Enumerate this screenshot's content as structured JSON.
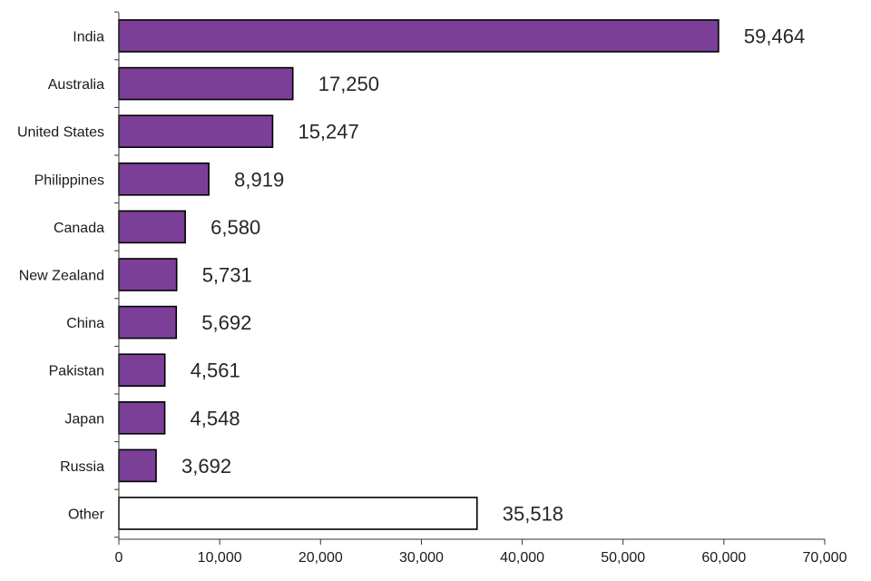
{
  "chart_data": {
    "type": "bar",
    "orientation": "horizontal",
    "title": "",
    "xlabel": "",
    "ylabel": "",
    "categories": [
      "India",
      "Australia",
      "United States",
      "Philippines",
      "Canada",
      "New Zealand",
      "China",
      "Pakistan",
      "Japan",
      "Russia",
      "Other"
    ],
    "values": [
      59464,
      17250,
      15247,
      8919,
      6580,
      5731,
      5692,
      4561,
      4548,
      3692,
      35518
    ],
    "value_labels": [
      "59,464",
      "17,250",
      "15,247",
      "8,919",
      "6,580",
      "5,731",
      "5,692",
      "4,561",
      "4,548",
      "3,692",
      "35,518"
    ],
    "xlim": [
      0,
      70000
    ],
    "x_ticks": [
      0,
      10000,
      20000,
      30000,
      40000,
      50000,
      60000,
      70000
    ],
    "x_tick_labels": [
      "0",
      "10,000",
      "20,000",
      "30,000",
      "40,000",
      "50,000",
      "60,000",
      "70,000"
    ],
    "colors": {
      "bar": "#7b3f98",
      "other": "#ffffff",
      "outline": "#000000"
    },
    "grid": false,
    "legend": "none"
  }
}
